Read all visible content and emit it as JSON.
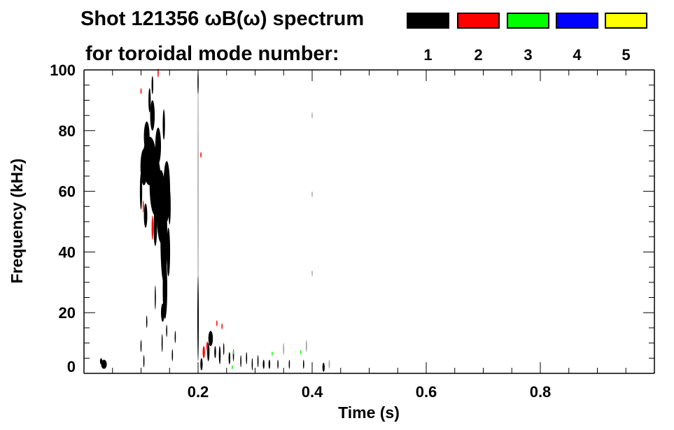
{
  "chart_data": {
    "type": "heatmap",
    "title_line1": "Shot 121356 ωB(ω) spectrum",
    "title_line2": "for toroidal mode number:",
    "xlabel": "Time (s)",
    "ylabel": "Frequency (kHz)",
    "xlim": [
      0,
      1.0
    ],
    "ylim": [
      0,
      100
    ],
    "x_ticks": [
      {
        "value": 0.2,
        "label": "0.2"
      },
      {
        "value": 0.4,
        "label": "0.4"
      },
      {
        "value": 0.6,
        "label": "0.6"
      },
      {
        "value": 0.8,
        "label": "0.8"
      }
    ],
    "y_ticks": [
      {
        "value": 0,
        "label": "0"
      },
      {
        "value": 20,
        "label": "20"
      },
      {
        "value": 40,
        "label": "40"
      },
      {
        "value": 60,
        "label": "60"
      },
      {
        "value": 80,
        "label": "80"
      },
      {
        "value": 100,
        "label": "100"
      }
    ],
    "x_minor_step": 0.05,
    "y_minor_step": 5,
    "legend": [
      {
        "mode": "1",
        "color": "#000000"
      },
      {
        "mode": "2",
        "color": "#ff0000"
      },
      {
        "mode": "3",
        "color": "#00ff00"
      },
      {
        "mode": "4",
        "color": "#0000ff"
      },
      {
        "mode": "5",
        "color": "#ffff00"
      }
    ],
    "faint_color": "#9a9a9a",
    "blobs_format": "[time_s, freq_kHz, time_halfwidth, freq_halfheight, mode (0=faint)]",
    "blobs": [
      [
        0.115,
        70,
        0.012,
        8,
        1
      ],
      [
        0.125,
        62,
        0.01,
        10,
        1
      ],
      [
        0.135,
        55,
        0.008,
        12,
        1
      ],
      [
        0.14,
        45,
        0.006,
        15,
        1
      ],
      [
        0.142,
        28,
        0.004,
        10,
        1
      ],
      [
        0.145,
        60,
        0.006,
        10,
        1
      ],
      [
        0.105,
        68,
        0.006,
        6,
        1
      ],
      [
        0.11,
        78,
        0.005,
        5,
        1
      ],
      [
        0.13,
        75,
        0.005,
        6,
        1
      ],
      [
        0.12,
        85,
        0.004,
        5,
        1
      ],
      [
        0.115,
        90,
        0.002,
        4,
        1
      ],
      [
        0.1,
        60,
        0.002,
        6,
        1
      ],
      [
        0.108,
        52,
        0.003,
        4,
        1
      ],
      [
        0.125,
        48,
        0.003,
        6,
        1
      ],
      [
        0.14,
        82,
        0.002,
        5,
        1
      ],
      [
        0.148,
        40,
        0.003,
        8,
        1
      ],
      [
        0.15,
        55,
        0.002,
        6,
        1
      ],
      [
        0.138,
        20,
        0.003,
        3,
        1
      ],
      [
        0.12,
        95,
        0.0015,
        3,
        1
      ],
      [
        0.1,
        9,
        0.001,
        2,
        1
      ],
      [
        0.105,
        4,
        0.001,
        2,
        1
      ],
      [
        0.125,
        25,
        0.001,
        4,
        1
      ],
      [
        0.137,
        10,
        0.001,
        3,
        1
      ],
      [
        0.145,
        14,
        0.001,
        2,
        1
      ],
      [
        0.155,
        6,
        0.001,
        2,
        1
      ],
      [
        0.11,
        17,
        0.001,
        2,
        1
      ],
      [
        0.16,
        12,
        0.001,
        2,
        1
      ],
      [
        0.2,
        60,
        0.0006,
        40,
        0
      ],
      [
        0.2,
        18,
        0.0012,
        14,
        1
      ],
      [
        0.2,
        96,
        0.001,
        4,
        1
      ],
      [
        0.222,
        11.5,
        0.004,
        2.5,
        1
      ],
      [
        0.218,
        7,
        0.002,
        3,
        1
      ],
      [
        0.206,
        3,
        0.002,
        2,
        1
      ],
      [
        0.23,
        7,
        0.0015,
        2,
        1
      ],
      [
        0.238,
        6,
        0.0015,
        3,
        1
      ],
      [
        0.245,
        8,
        0.001,
        2,
        1
      ],
      [
        0.255,
        5,
        0.0015,
        2,
        1
      ],
      [
        0.262,
        6,
        0.001,
        2,
        1
      ],
      [
        0.275,
        4,
        0.001,
        2,
        1
      ],
      [
        0.285,
        5,
        0.001,
        2,
        1
      ],
      [
        0.295,
        3,
        0.001,
        2,
        1
      ],
      [
        0.305,
        4,
        0.001,
        2,
        1
      ],
      [
        0.315,
        3,
        0.0015,
        1.5,
        1
      ],
      [
        0.325,
        3,
        0.0015,
        1.5,
        1
      ],
      [
        0.34,
        3,
        0.001,
        1.5,
        1
      ],
      [
        0.36,
        3,
        0.001,
        1.5,
        1
      ],
      [
        0.385,
        3,
        0.001,
        1.5,
        1
      ],
      [
        0.42,
        2,
        0.002,
        1.5,
        1
      ],
      [
        0.35,
        8,
        0.001,
        2,
        0
      ],
      [
        0.39,
        9,
        0.001,
        2,
        0
      ],
      [
        0.43,
        3,
        0.001,
        1.5,
        0
      ],
      [
        0.035,
        3,
        0.005,
        1.5,
        1
      ],
      [
        0.03,
        4,
        0.002,
        1,
        1
      ],
      [
        0.13,
        99,
        0.001,
        1.5,
        2
      ],
      [
        0.1,
        93,
        0.001,
        1,
        2
      ],
      [
        0.104,
        55,
        0.001,
        2,
        2
      ],
      [
        0.12,
        48,
        0.0015,
        4,
        2
      ],
      [
        0.205,
        72,
        0.001,
        1,
        2
      ],
      [
        0.21,
        7,
        0.002,
        2,
        2
      ],
      [
        0.216,
        9,
        0.0015,
        1.5,
        2
      ],
      [
        0.233,
        16.5,
        0.001,
        1,
        2
      ],
      [
        0.242,
        15.5,
        0.001,
        1,
        2
      ],
      [
        0.262,
        7,
        0.001,
        0.7,
        3
      ],
      [
        0.33,
        6.5,
        0.001,
        0.7,
        3
      ],
      [
        0.38,
        7,
        0.001,
        0.7,
        3
      ],
      [
        0.26,
        2,
        0.001,
        0.7,
        3
      ],
      [
        0.4,
        85,
        0.0008,
        1,
        0
      ],
      [
        0.4,
        59,
        0.0008,
        1,
        0
      ],
      [
        0.4,
        33,
        0.0008,
        1,
        0
      ]
    ]
  }
}
